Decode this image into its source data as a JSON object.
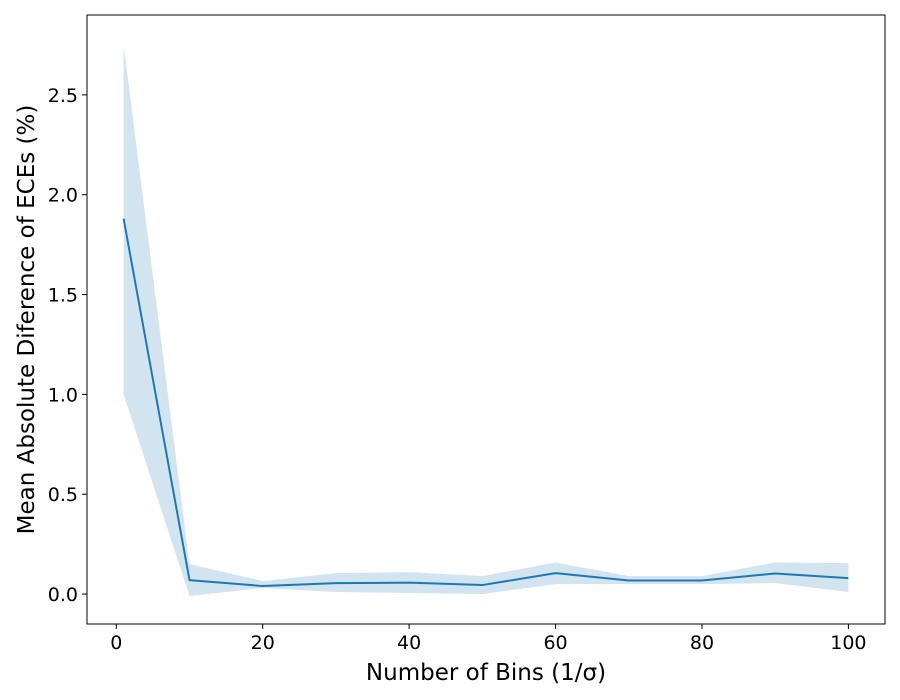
{
  "chart_data": {
    "type": "line",
    "xlabel": "Number of Bins (1/σ)",
    "ylabel": "Mean Absolute Diference of ECEs (%)",
    "xlim": [
      -4,
      105
    ],
    "ylim": [
      -0.15,
      2.9
    ],
    "xticks": [
      0,
      20,
      40,
      60,
      80,
      100
    ],
    "xtick_labels": [
      "0",
      "20",
      "40",
      "60",
      "80",
      "100"
    ],
    "yticks": [
      0.0,
      0.5,
      1.0,
      1.5,
      2.0,
      2.5
    ],
    "ytick_labels": [
      "0.0",
      "0.5",
      "1.0",
      "1.5",
      "2.0",
      "2.5"
    ],
    "grid": false,
    "legend": "none",
    "series": [
      {
        "x": [
          1,
          10,
          20,
          30,
          40,
          50,
          60,
          70,
          80,
          90,
          100
        ],
        "values": [
          1.88,
          0.07,
          0.04,
          0.055,
          0.057,
          0.045,
          0.105,
          0.068,
          0.068,
          0.103,
          0.08
        ],
        "band_lower": [
          1.0,
          -0.01,
          0.03,
          0.01,
          0.005,
          0.0,
          0.05,
          0.05,
          0.05,
          0.055,
          0.01
        ],
        "band_upper": [
          2.75,
          0.15,
          0.065,
          0.105,
          0.11,
          0.09,
          0.158,
          0.09,
          0.09,
          0.158,
          0.155
        ],
        "color": "#1f77b4",
        "band_color": "#1f77b4"
      }
    ]
  }
}
